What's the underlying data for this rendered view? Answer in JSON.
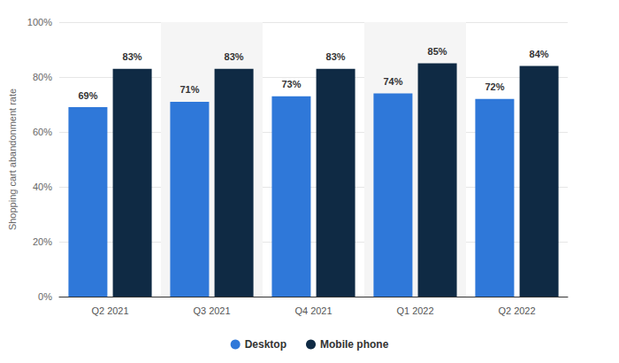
{
  "chart_data": {
    "type": "bar",
    "y_label": "Shopping cart abandonment rate",
    "categories": [
      "Q2 2021",
      "Q3 2021",
      "Q4 2021",
      "Q1 2022",
      "Q2 2022"
    ],
    "series": [
      {
        "name": "Desktop",
        "color": "#2f78d9",
        "values": [
          69,
          71,
          73,
          74,
          72
        ],
        "value_labels": [
          "69%",
          "71%",
          "73%",
          "74%",
          "72%"
        ]
      },
      {
        "name": "Mobile phone",
        "color": "#0f2a44",
        "values": [
          83,
          83,
          83,
          85,
          84
        ],
        "value_labels": [
          "83%",
          "83%",
          "83%",
          "85%",
          "84%"
        ]
      }
    ],
    "ylim": [
      0,
      100
    ],
    "yticks": [
      {
        "value": 0,
        "label": "0%"
      },
      {
        "value": 20,
        "label": "20%"
      },
      {
        "value": 40,
        "label": "40%"
      },
      {
        "value": 60,
        "label": "60%"
      },
      {
        "value": 80,
        "label": "80%"
      },
      {
        "value": 100,
        "label": "100%"
      }
    ],
    "grid": true,
    "legend": "bottom",
    "data_labels": true
  }
}
